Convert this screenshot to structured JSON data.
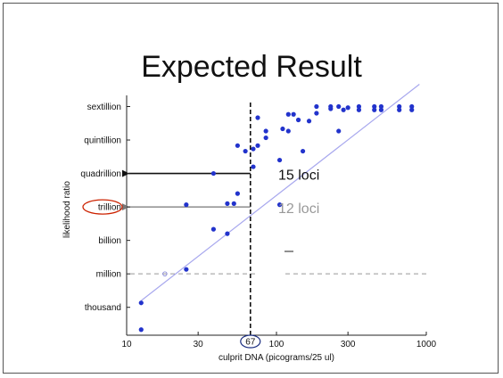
{
  "slide": {
    "title": "Expected Result"
  },
  "chart_data": {
    "type": "scatter",
    "xscale": "log",
    "xlim": [
      10,
      1000
    ],
    "xticks": [
      10,
      30,
      100,
      300,
      1000
    ],
    "xlabel": "culprit DNA (picograms/25 ul)",
    "ylabel": "likelihood ratio",
    "ylim": [
      0.5,
      22
    ],
    "yticks": [
      {
        "value": 3,
        "label": "thousand"
      },
      {
        "value": 6,
        "label": "million"
      },
      {
        "value": 9,
        "label": "billion"
      },
      {
        "value": 12,
        "label": "trillion"
      },
      {
        "value": 15,
        "label": "quadrillion"
      },
      {
        "value": 18,
        "label": "quintillion"
      },
      {
        "value": 21,
        "label": "sextillion"
      }
    ],
    "series": [
      {
        "color": "#2233cc",
        "points": [
          [
            12.5,
            1
          ],
          [
            12.5,
            3.4
          ],
          [
            25,
            6.4
          ],
          [
            25,
            12.2
          ],
          [
            38,
            10
          ],
          [
            38,
            15
          ],
          [
            47,
            9.6
          ],
          [
            47,
            12.3
          ],
          [
            52,
            12.3
          ],
          [
            55,
            13.2
          ],
          [
            55,
            17.5
          ],
          [
            62,
            17
          ],
          [
            70,
            15.6
          ],
          [
            70,
            17.2
          ],
          [
            75,
            20
          ],
          [
            75,
            17.5
          ],
          [
            85,
            18.2
          ],
          [
            85,
            18.8
          ],
          [
            105,
            12.2
          ],
          [
            105,
            16.2
          ],
          [
            110,
            19
          ],
          [
            120,
            20.3
          ],
          [
            120,
            18.8
          ],
          [
            130,
            20.3
          ],
          [
            140,
            19.8
          ],
          [
            150,
            17
          ],
          [
            165,
            19.7
          ],
          [
            185,
            20.4
          ],
          [
            185,
            21
          ],
          [
            230,
            20.8
          ],
          [
            230,
            21
          ],
          [
            260,
            21
          ],
          [
            260,
            18.8
          ],
          [
            280,
            20.7
          ],
          [
            300,
            20.9
          ],
          [
            355,
            20.7
          ],
          [
            355,
            21
          ],
          [
            450,
            20.7
          ],
          [
            450,
            21
          ],
          [
            500,
            21
          ],
          [
            500,
            20.7
          ],
          [
            660,
            21
          ],
          [
            660,
            20.7
          ],
          [
            800,
            21
          ],
          [
            800,
            20.7
          ]
        ]
      }
    ],
    "fit_line": {
      "x": [
        12.5,
        900
      ],
      "y": [
        3.6,
        23
      ]
    },
    "open_point": {
      "x": 18,
      "y": 6
    },
    "threshold_x": 67,
    "threshold_label": "67",
    "reference_y": 6,
    "annotations": [
      {
        "text": "15 loci",
        "color": "#111111",
        "level": 15
      },
      {
        "text": "12 loci",
        "color": "#999999",
        "level": 12
      }
    ],
    "highlight": {
      "ytick": "trillion",
      "xtick": "67"
    },
    "colors": {
      "fit": "#a8a8ee",
      "highlight": "#cc2200",
      "circle_x": "#1a2d80",
      "arrow_15": "#111111",
      "arrow_12": "#777777"
    }
  }
}
